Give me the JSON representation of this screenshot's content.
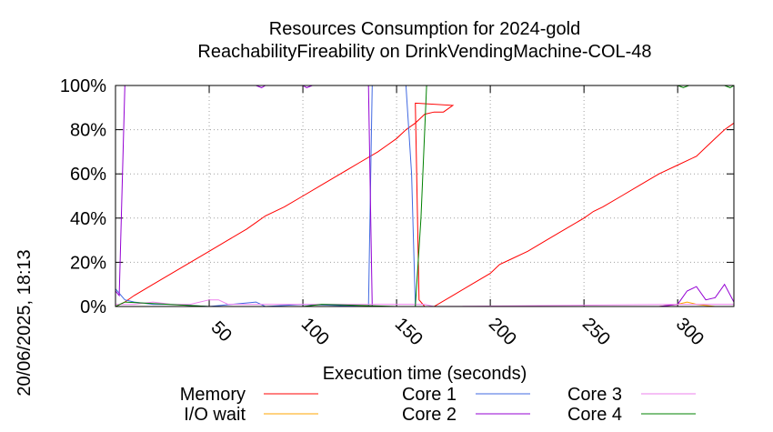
{
  "chart_data": {
    "type": "line",
    "title": "Resources Consumption for 2024-gold",
    "subtitle": "ReachabilityFireability on DrinkVendingMachine-COL-48",
    "xlabel": "Execution time (seconds)",
    "ylabel": "",
    "side_label": "20/06/2025, 18:13",
    "xlim": [
      0,
      330
    ],
    "ylim": [
      0,
      100
    ],
    "x_ticks": [
      50,
      100,
      150,
      200,
      250,
      300
    ],
    "y_ticks": [
      0,
      20,
      40,
      60,
      80,
      100
    ],
    "y_tick_suffix": "%",
    "grid": true,
    "legend_position": "bottom",
    "series": [
      {
        "name": "Memory",
        "color": "#ff0000",
        "points": [
          [
            0,
            0
          ],
          [
            5,
            2
          ],
          [
            10,
            5
          ],
          [
            20,
            10
          ],
          [
            30,
            15
          ],
          [
            40,
            20
          ],
          [
            50,
            25
          ],
          [
            60,
            30
          ],
          [
            70,
            35
          ],
          [
            75,
            38
          ],
          [
            80,
            41
          ],
          [
            90,
            45
          ],
          [
            100,
            50
          ],
          [
            110,
            55
          ],
          [
            120,
            60
          ],
          [
            130,
            65
          ],
          [
            140,
            70
          ],
          [
            145,
            73
          ],
          [
            150,
            76
          ],
          [
            155,
            80
          ],
          [
            160,
            83
          ],
          [
            165,
            87
          ],
          [
            170,
            88
          ],
          [
            175,
            88
          ],
          [
            180,
            91
          ],
          [
            160,
            92
          ],
          [
            162,
            3
          ],
          [
            165,
            0
          ],
          [
            170,
            0
          ],
          [
            180,
            5
          ],
          [
            190,
            10
          ],
          [
            200,
            15
          ],
          [
            205,
            19
          ],
          [
            210,
            21
          ],
          [
            220,
            25
          ],
          [
            230,
            30
          ],
          [
            240,
            35
          ],
          [
            250,
            40
          ],
          [
            255,
            43
          ],
          [
            260,
            45
          ],
          [
            270,
            50
          ],
          [
            280,
            55
          ],
          [
            290,
            60
          ],
          [
            300,
            64
          ],
          [
            310,
            68
          ],
          [
            315,
            72
          ],
          [
            320,
            76
          ],
          [
            325,
            80
          ],
          [
            330,
            83
          ]
        ]
      },
      {
        "name": "I/O wait",
        "color": "#ffa500",
        "points": [
          [
            0,
            0
          ],
          [
            290,
            0
          ],
          [
            300,
            1
          ],
          [
            305,
            2
          ],
          [
            310,
            1
          ],
          [
            320,
            0
          ],
          [
            330,
            0
          ]
        ]
      },
      {
        "name": "Core 1",
        "color": "#4169e1",
        "points": [
          [
            0,
            8
          ],
          [
            3,
            5
          ],
          [
            5,
            3
          ],
          [
            10,
            2
          ],
          [
            20,
            1
          ],
          [
            30,
            1
          ],
          [
            50,
            0
          ],
          [
            75,
            2
          ],
          [
            80,
            0
          ],
          [
            100,
            1
          ],
          [
            135,
            0
          ],
          [
            137,
            100
          ],
          [
            155,
            100
          ],
          [
            158,
            60
          ],
          [
            160,
            0
          ],
          [
            170,
            0
          ],
          [
            330,
            0
          ]
        ]
      },
      {
        "name": "Core 2",
        "color": "#9400d3",
        "points": [
          [
            0,
            7
          ],
          [
            2,
            5
          ],
          [
            5,
            100
          ],
          [
            75,
            100
          ],
          [
            78,
            99
          ],
          [
            80,
            100
          ],
          [
            100,
            100
          ],
          [
            102,
            99
          ],
          [
            105,
            100
          ],
          [
            135,
            100
          ],
          [
            137,
            0
          ],
          [
            290,
            0
          ],
          [
            300,
            1
          ],
          [
            305,
            7
          ],
          [
            310,
            9
          ],
          [
            315,
            3
          ],
          [
            320,
            4
          ],
          [
            325,
            10
          ],
          [
            330,
            2
          ]
        ]
      },
      {
        "name": "Core 3",
        "color": "#ee82ee",
        "points": [
          [
            0,
            1
          ],
          [
            10,
            1
          ],
          [
            20,
            2
          ],
          [
            30,
            1
          ],
          [
            40,
            1
          ],
          [
            50,
            3
          ],
          [
            55,
            3
          ],
          [
            60,
            1
          ],
          [
            100,
            1
          ],
          [
            137,
            1
          ],
          [
            150,
            1
          ],
          [
            165,
            1
          ],
          [
            170,
            0
          ],
          [
            300,
            1
          ],
          [
            310,
            1
          ],
          [
            330,
            1
          ]
        ]
      },
      {
        "name": "Core 4",
        "color": "#008000",
        "points": [
          [
            0,
            0
          ],
          [
            5,
            2
          ],
          [
            50,
            0
          ],
          [
            100,
            0
          ],
          [
            110,
            1
          ],
          [
            150,
            0
          ],
          [
            160,
            0
          ],
          [
            163,
            40
          ],
          [
            166,
            100
          ],
          [
            300,
            100
          ],
          [
            303,
            99
          ],
          [
            306,
            100
          ],
          [
            325,
            100
          ],
          [
            328,
            99
          ],
          [
            330,
            100
          ]
        ]
      }
    ]
  }
}
